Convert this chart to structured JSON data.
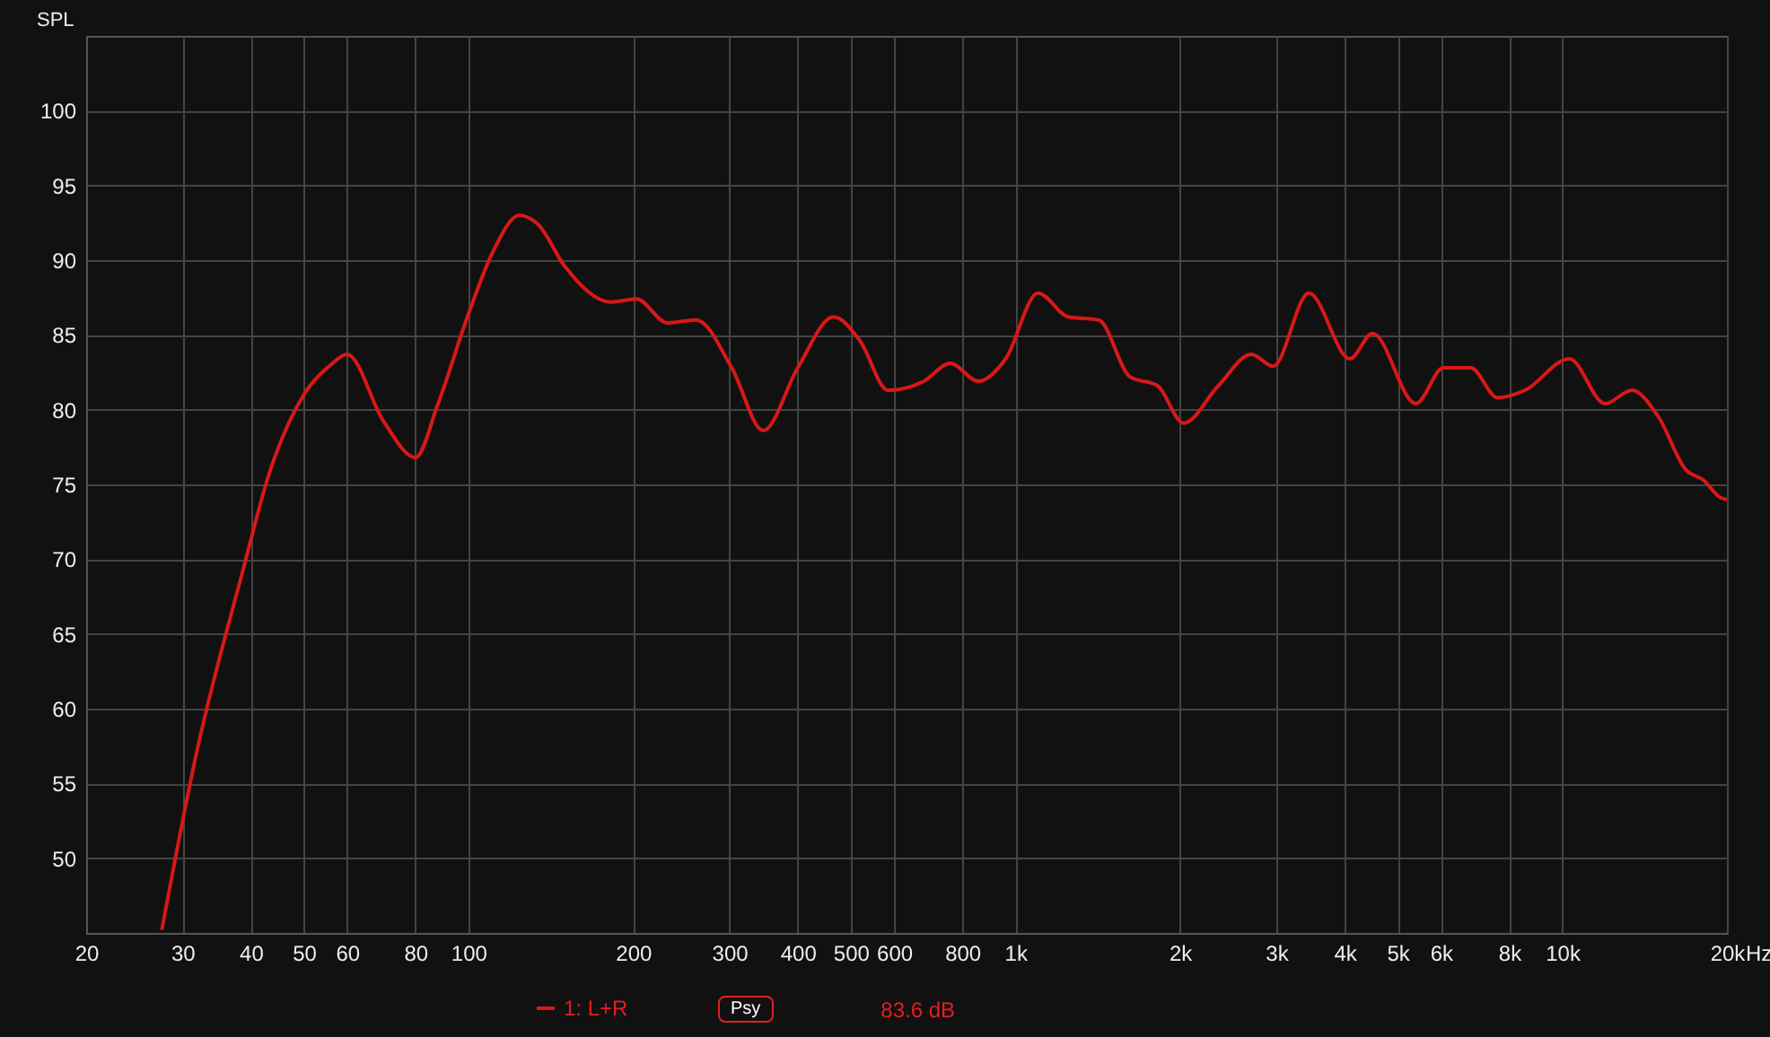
{
  "chart_data": {
    "type": "line",
    "ylabel": "SPL",
    "log": "x",
    "grid": true,
    "legend": "bottom",
    "marker": "none",
    "line_style": "solid",
    "xlim": [
      20,
      20000
    ],
    "ylim": [
      45,
      105
    ],
    "xticks": [
      20,
      30,
      40,
      50,
      60,
      80,
      100,
      200,
      300,
      400,
      500,
      600,
      800,
      {
        "value": 1000,
        "label": "1k"
      },
      {
        "value": 2000,
        "label": "2k"
      },
      {
        "value": 3000,
        "label": "3k"
      },
      {
        "value": 4000,
        "label": "4k"
      },
      {
        "value": 5000,
        "label": "5k"
      },
      {
        "value": 6000,
        "label": "6k"
      },
      {
        "value": 8000,
        "label": "8k"
      },
      {
        "value": 10000,
        "label": "10k"
      },
      {
        "value": 20000,
        "label": "20k"
      }
    ],
    "xlabel": "Hz",
    "yticks": [
      50,
      55,
      60,
      65,
      70,
      75,
      80,
      85,
      90,
      95,
      100
    ],
    "annotations": [
      "Psy",
      "83.6 dB"
    ],
    "x": [
      27.5,
      31.9,
      38.6,
      43.2,
      50,
      56,
      60,
      70,
      80,
      88,
      100,
      111,
      124,
      134,
      150,
      182,
      203,
      231,
      261,
      303,
      346,
      400,
      465,
      520,
      585,
      680,
      760,
      856,
      960,
      1100,
      1250,
      1420,
      1620,
      1820,
      2030,
      2350,
      2700,
      2960,
      3440,
      4090,
      4500,
      5400,
      6060,
      6800,
      7620,
      8550,
      10300,
      11980,
      13400,
      15000,
      16800,
      18100,
      19500,
      20000
    ],
    "series": [
      {
        "name": "1: L+R",
        "color": "#d81818",
        "values": [
          45.2,
          57.2,
          69.1,
          75.7,
          81,
          83,
          83.7,
          79.2,
          76.8,
          80.4,
          86.4,
          90.6,
          93.0,
          92.4,
          89.6,
          87.2,
          87.4,
          85.8,
          86.0,
          82.8,
          78.6,
          82.8,
          86.2,
          84.6,
          81.3,
          81.9,
          83.1,
          81.9,
          83.4,
          87.8,
          86.2,
          86.0,
          82.2,
          81.6,
          79.1,
          81.6,
          83.7,
          82.9,
          87.8,
          83.4,
          85.1,
          80.4,
          82.8,
          82.8,
          80.8,
          81.3,
          83.4,
          80.4,
          81.3,
          79.5,
          76.0,
          75.3,
          74.1,
          74.0
        ]
      }
    ]
  }
}
